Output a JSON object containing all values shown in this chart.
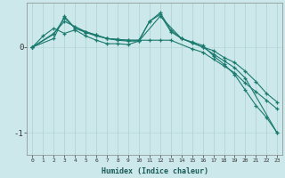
{
  "xlabel": "Humidex (Indice chaleur)",
  "bg_color": "#cce8ea",
  "line_color": "#1a7a6e",
  "grid_color": "#b0d4d8",
  "xlim": [
    -0.5,
    23.5
  ],
  "ylim": [
    -1.25,
    0.52
  ],
  "xticks": [
    0,
    1,
    2,
    3,
    4,
    5,
    6,
    7,
    8,
    9,
    10,
    11,
    12,
    13,
    14,
    15,
    16,
    17,
    18,
    19,
    20,
    21,
    22,
    23
  ],
  "yticks": [
    0,
    -1
  ],
  "series": [
    {
      "x": [
        0,
        1,
        2,
        3,
        4,
        5,
        6,
        7,
        8,
        9,
        10,
        11,
        12,
        13,
        14,
        15,
        16,
        17,
        18,
        19,
        20,
        21,
        22,
        23
      ],
      "y": [
        0.0,
        0.13,
        0.22,
        0.16,
        0.2,
        0.13,
        0.08,
        0.04,
        0.04,
        0.03,
        0.07,
        0.3,
        0.4,
        0.2,
        0.1,
        0.06,
        0.02,
        -0.1,
        -0.2,
        -0.32,
        -0.5,
        -0.68,
        -0.82,
        -1.0
      ]
    },
    {
      "x": [
        0,
        2,
        3,
        4,
        5,
        6,
        7,
        8,
        9,
        10,
        11,
        12,
        13,
        15,
        16,
        17,
        18,
        19,
        20,
        21,
        22,
        23
      ],
      "y": [
        0.0,
        0.16,
        0.3,
        0.24,
        0.18,
        0.14,
        0.1,
        0.09,
        0.08,
        0.08,
        0.08,
        0.08,
        0.08,
        -0.02,
        -0.06,
        -0.14,
        -0.22,
        -0.3,
        -0.42,
        -0.52,
        -0.62,
        -0.72
      ]
    },
    {
      "x": [
        0,
        2,
        3,
        4,
        5,
        6,
        7,
        8,
        9,
        10,
        12,
        14,
        15,
        16,
        17,
        18,
        19,
        20,
        21,
        22,
        23
      ],
      "y": [
        0.0,
        0.1,
        0.36,
        0.22,
        0.18,
        0.14,
        0.1,
        0.08,
        0.07,
        0.07,
        0.36,
        0.1,
        0.05,
        0.0,
        -0.04,
        -0.12,
        -0.18,
        -0.28,
        -0.4,
        -0.54,
        -0.64
      ]
    },
    {
      "x": [
        0,
        2,
        3,
        4,
        5,
        6,
        7,
        8,
        9,
        10,
        11,
        12,
        13,
        14,
        15,
        16,
        17,
        18,
        19,
        20,
        23
      ],
      "y": [
        0.0,
        0.15,
        0.34,
        0.22,
        0.17,
        0.13,
        0.1,
        0.09,
        0.08,
        0.08,
        0.3,
        0.38,
        0.18,
        0.1,
        0.05,
        0.0,
        -0.08,
        -0.16,
        -0.24,
        -0.36,
        -1.0
      ]
    }
  ]
}
